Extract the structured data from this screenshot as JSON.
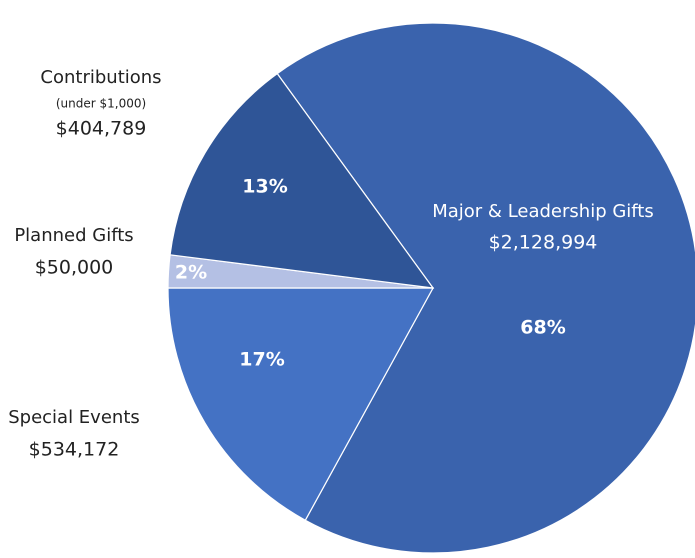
{
  "chart_data": {
    "type": "pie",
    "categories": [
      "Major & Leadership Gifts",
      "Special Events",
      "Planned Gifts",
      "Contributions"
    ],
    "values": [
      68,
      17,
      2,
      13
    ],
    "value_labels": [
      "68%",
      "17%",
      "2%",
      "13%"
    ],
    "amount_labels": [
      "$2,128,994",
      "$534,172",
      "$50,000",
      "$404,789"
    ],
    "annotation": "(under $1,000)",
    "colors": [
      "#3a63ad",
      "#4472c4",
      "#b4c0e4",
      "#2f5597"
    ]
  }
}
